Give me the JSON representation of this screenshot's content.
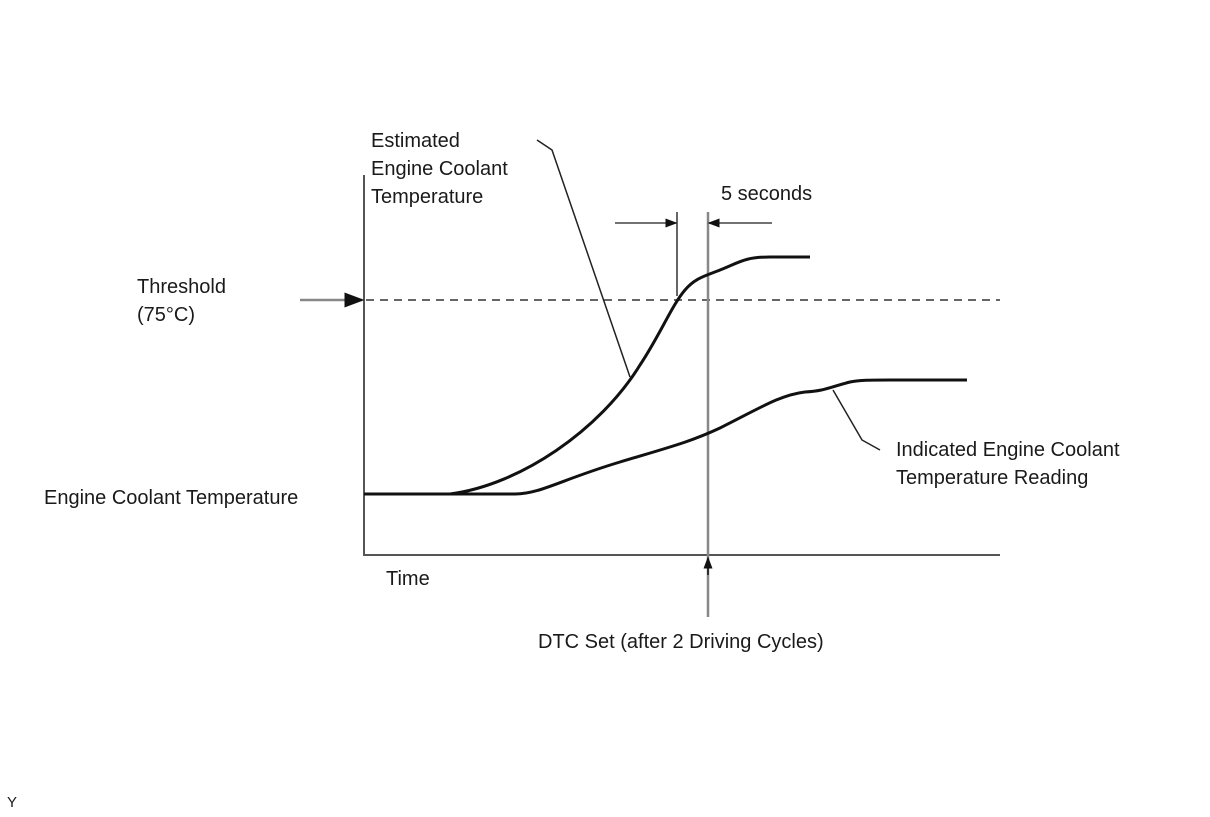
{
  "labels": {
    "estimated": [
      "Estimated",
      "Engine Coolant",
      "Temperature"
    ],
    "five_seconds": "5 seconds",
    "threshold": [
      "Threshold",
      "(75°C)"
    ],
    "y_axis": "Engine Coolant Temperature",
    "x_axis": "Time",
    "indicated": [
      "Indicated Engine Coolant",
      "Temperature Reading"
    ],
    "dtc": "DTC Set (after 2 Driving Cycles)",
    "corner": "Y"
  }
}
